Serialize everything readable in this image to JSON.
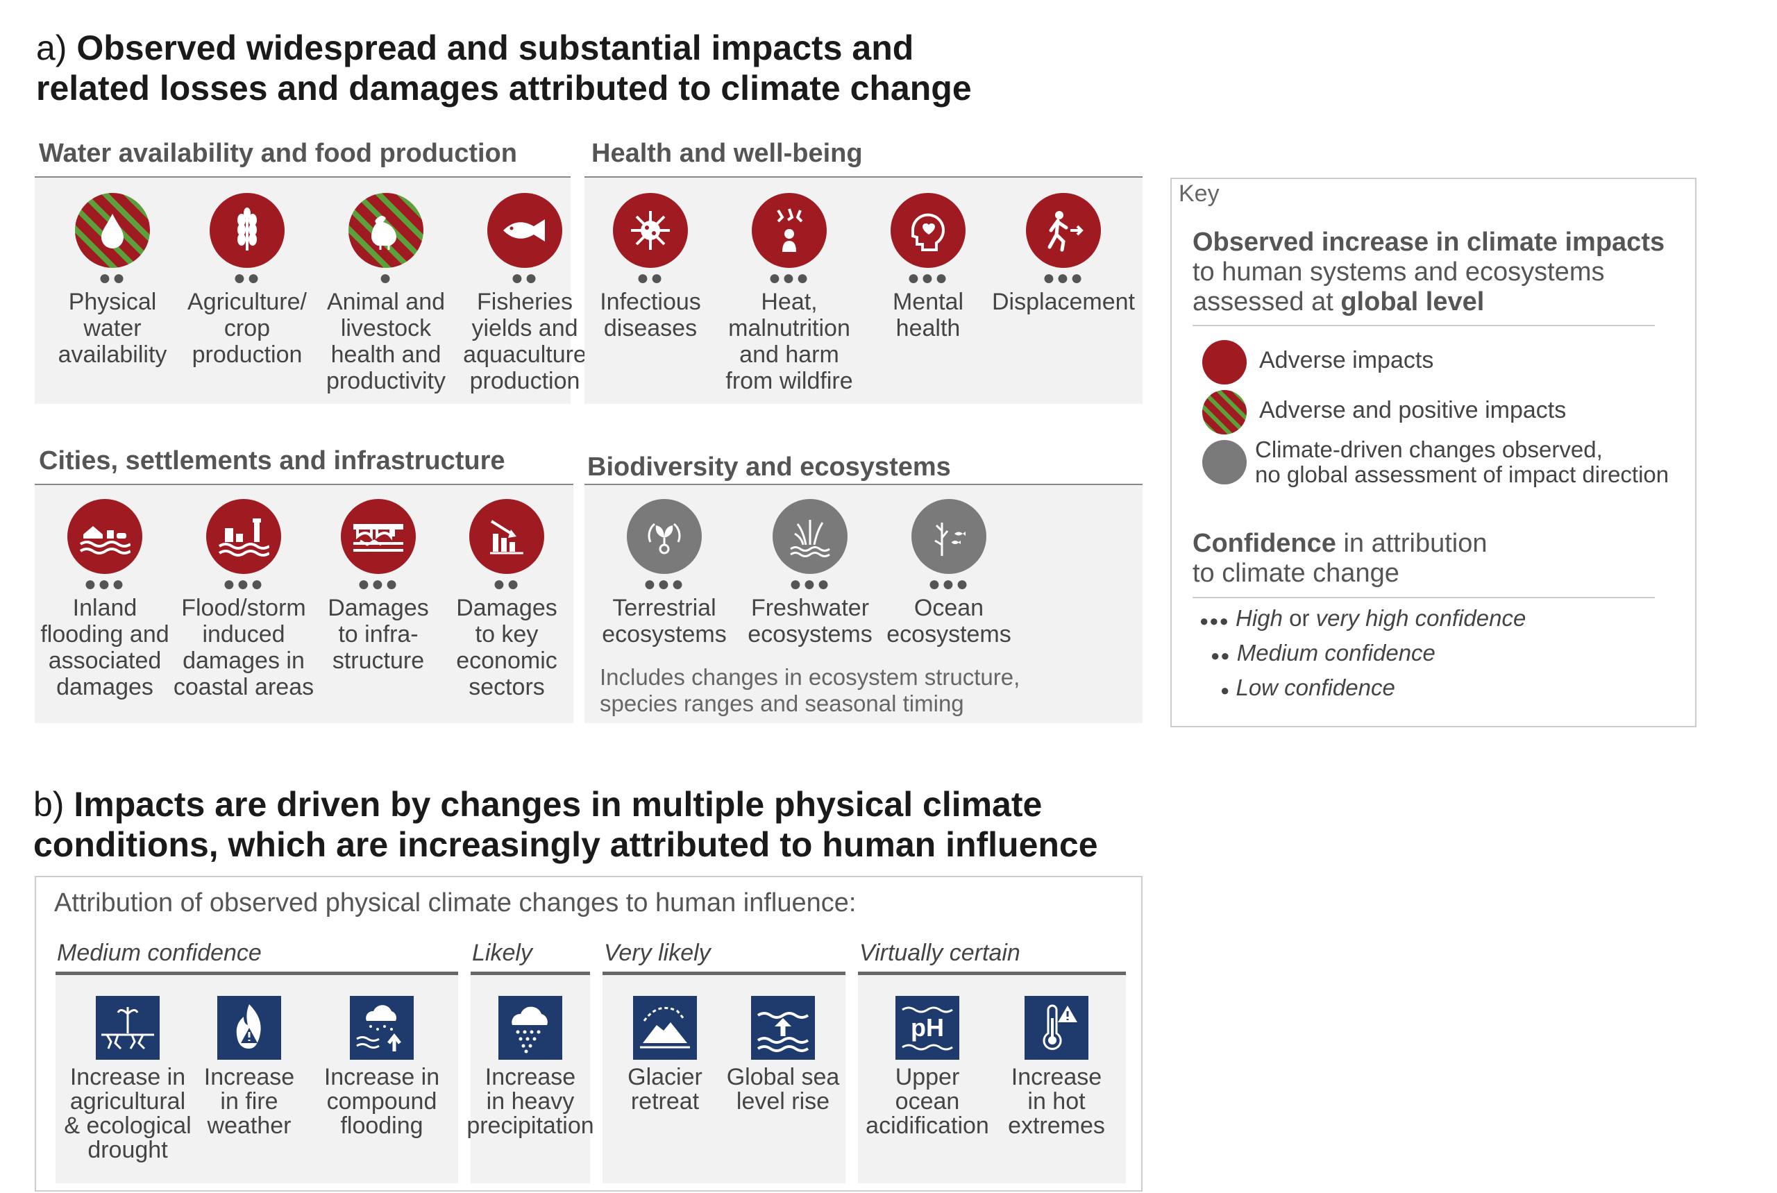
{
  "section_a": {
    "letter": "a)",
    "title_line1": "Observed widespread and substantial impacts and",
    "title_line2": "related losses and damages attributed to climate change"
  },
  "categories": {
    "water": {
      "title": "Water availability and food production",
      "items": [
        {
          "label": "Physical\nwater\navailability",
          "dots": "●●",
          "style": "hatch",
          "icon": "water-drop-icon"
        },
        {
          "label": "Agriculture/\ncrop\nproduction",
          "dots": "●●",
          "style": "red",
          "icon": "wheat-icon"
        },
        {
          "label": "Animal and\nlivestock\nhealth and\nproductivity",
          "dots": "●",
          "style": "hatch",
          "icon": "chicken-icon"
        },
        {
          "label": "Fisheries\nyields and\naquaculture\nproduction",
          "dots": "●●",
          "style": "red",
          "icon": "fish-icon"
        }
      ]
    },
    "health": {
      "title": "Health and well-being",
      "items": [
        {
          "label": "Infectious\ndiseases",
          "dots": "●●",
          "style": "red",
          "icon": "virus-icon"
        },
        {
          "label": "Heat,\nmalnutrition\nand harm\nfrom wildfire",
          "dots": "●●●",
          "style": "red",
          "icon": "heat-icon"
        },
        {
          "label": "Mental\nhealth",
          "dots": "●●●",
          "style": "red",
          "icon": "mental-health-icon"
        },
        {
          "label": "Displacement",
          "dots": "●●●",
          "style": "red",
          "icon": "displacement-icon"
        }
      ]
    },
    "cities": {
      "title": "Cities, settlements and infrastructure",
      "items": [
        {
          "label": "Inland\nflooding and\nassociated\ndamages",
          "dots": "●●●",
          "style": "red",
          "icon": "inland-flood-icon"
        },
        {
          "label": "Flood/storm\ninduced\ndamages in\ncoastal areas",
          "dots": "●●●",
          "style": "red",
          "icon": "coastal-flood-icon"
        },
        {
          "label": "Damages\nto infra-\nstructure",
          "dots": "●●●",
          "style": "red",
          "icon": "bridge-icon"
        },
        {
          "label": "Damages\nto key\neconomic\nsectors",
          "dots": "●●",
          "style": "red",
          "icon": "economic-chart-icon"
        }
      ]
    },
    "bio": {
      "title": "Biodiversity and ecosystems",
      "items": [
        {
          "label": "Terrestrial\necosystems",
          "dots": "●●●",
          "style": "grey",
          "icon": "terrestrial-icon"
        },
        {
          "label": "Freshwater\necosystems",
          "dots": "●●●",
          "style": "grey",
          "icon": "freshwater-icon"
        },
        {
          "label": "Ocean\necosystems",
          "dots": "●●●",
          "style": "grey",
          "icon": "ocean-icon"
        }
      ],
      "note_line1": "Includes changes in ecosystem structure,",
      "note_line2": "species ranges and seasonal timing"
    }
  },
  "key": {
    "title": "Key",
    "heading_bold": "Observed increase in climate impacts",
    "heading_line2": "to human systems and ecosystems",
    "heading_line3_plain": "assessed at ",
    "heading_line3_bold": "global level",
    "adverse": "Adverse impacts",
    "adverse_positive": "Adverse and positive impacts",
    "climate_driven_1": "Climate-driven changes observed,",
    "climate_driven_2": "no global assessment of impact direction",
    "confidence_bold": "Confidence",
    "confidence_rest": " in attribution",
    "confidence_line2": "to climate change",
    "high_dots": "●●●",
    "high_plain": "High",
    "high_mid": " or ",
    "high_tail": "very high confidence",
    "medium_dots": "●●",
    "medium": "Medium confidence",
    "low_dots": "●",
    "low": "Low confidence"
  },
  "section_b": {
    "letter": "b)",
    "title_line1": "Impacts are driven by changes in multiple physical climate",
    "title_line2": "conditions, which are increasingly attributed to human influence",
    "subtitle": "Attribution of observed physical climate changes to human influence:",
    "groups": [
      {
        "conf": "Medium confidence",
        "items": [
          {
            "label": "Increase in\nagricultural\n& ecological\ndrought",
            "icon": "drought-icon"
          },
          {
            "label": "Increase\nin fire\nweather",
            "icon": "fire-weather-icon"
          },
          {
            "label": "Increase in\ncompound\nflooding",
            "icon": "compound-flooding-icon"
          }
        ]
      },
      {
        "conf": "Likely",
        "items": [
          {
            "label": "Increase\nin heavy\nprecipitation",
            "icon": "heavy-rain-icon"
          }
        ]
      },
      {
        "conf": "Very likely",
        "items": [
          {
            "label": "Glacier\nretreat",
            "icon": "glacier-icon"
          },
          {
            "label": "Global sea\nlevel rise",
            "icon": "sea-level-icon"
          }
        ]
      },
      {
        "conf": "Virtually certain",
        "items": [
          {
            "label": "Upper\nocean\nacidification",
            "icon": "ph-icon"
          },
          {
            "label": "Increase\nin hot\nextremes",
            "icon": "thermometer-icon"
          }
        ]
      }
    ],
    "ph_text": "pH"
  }
}
